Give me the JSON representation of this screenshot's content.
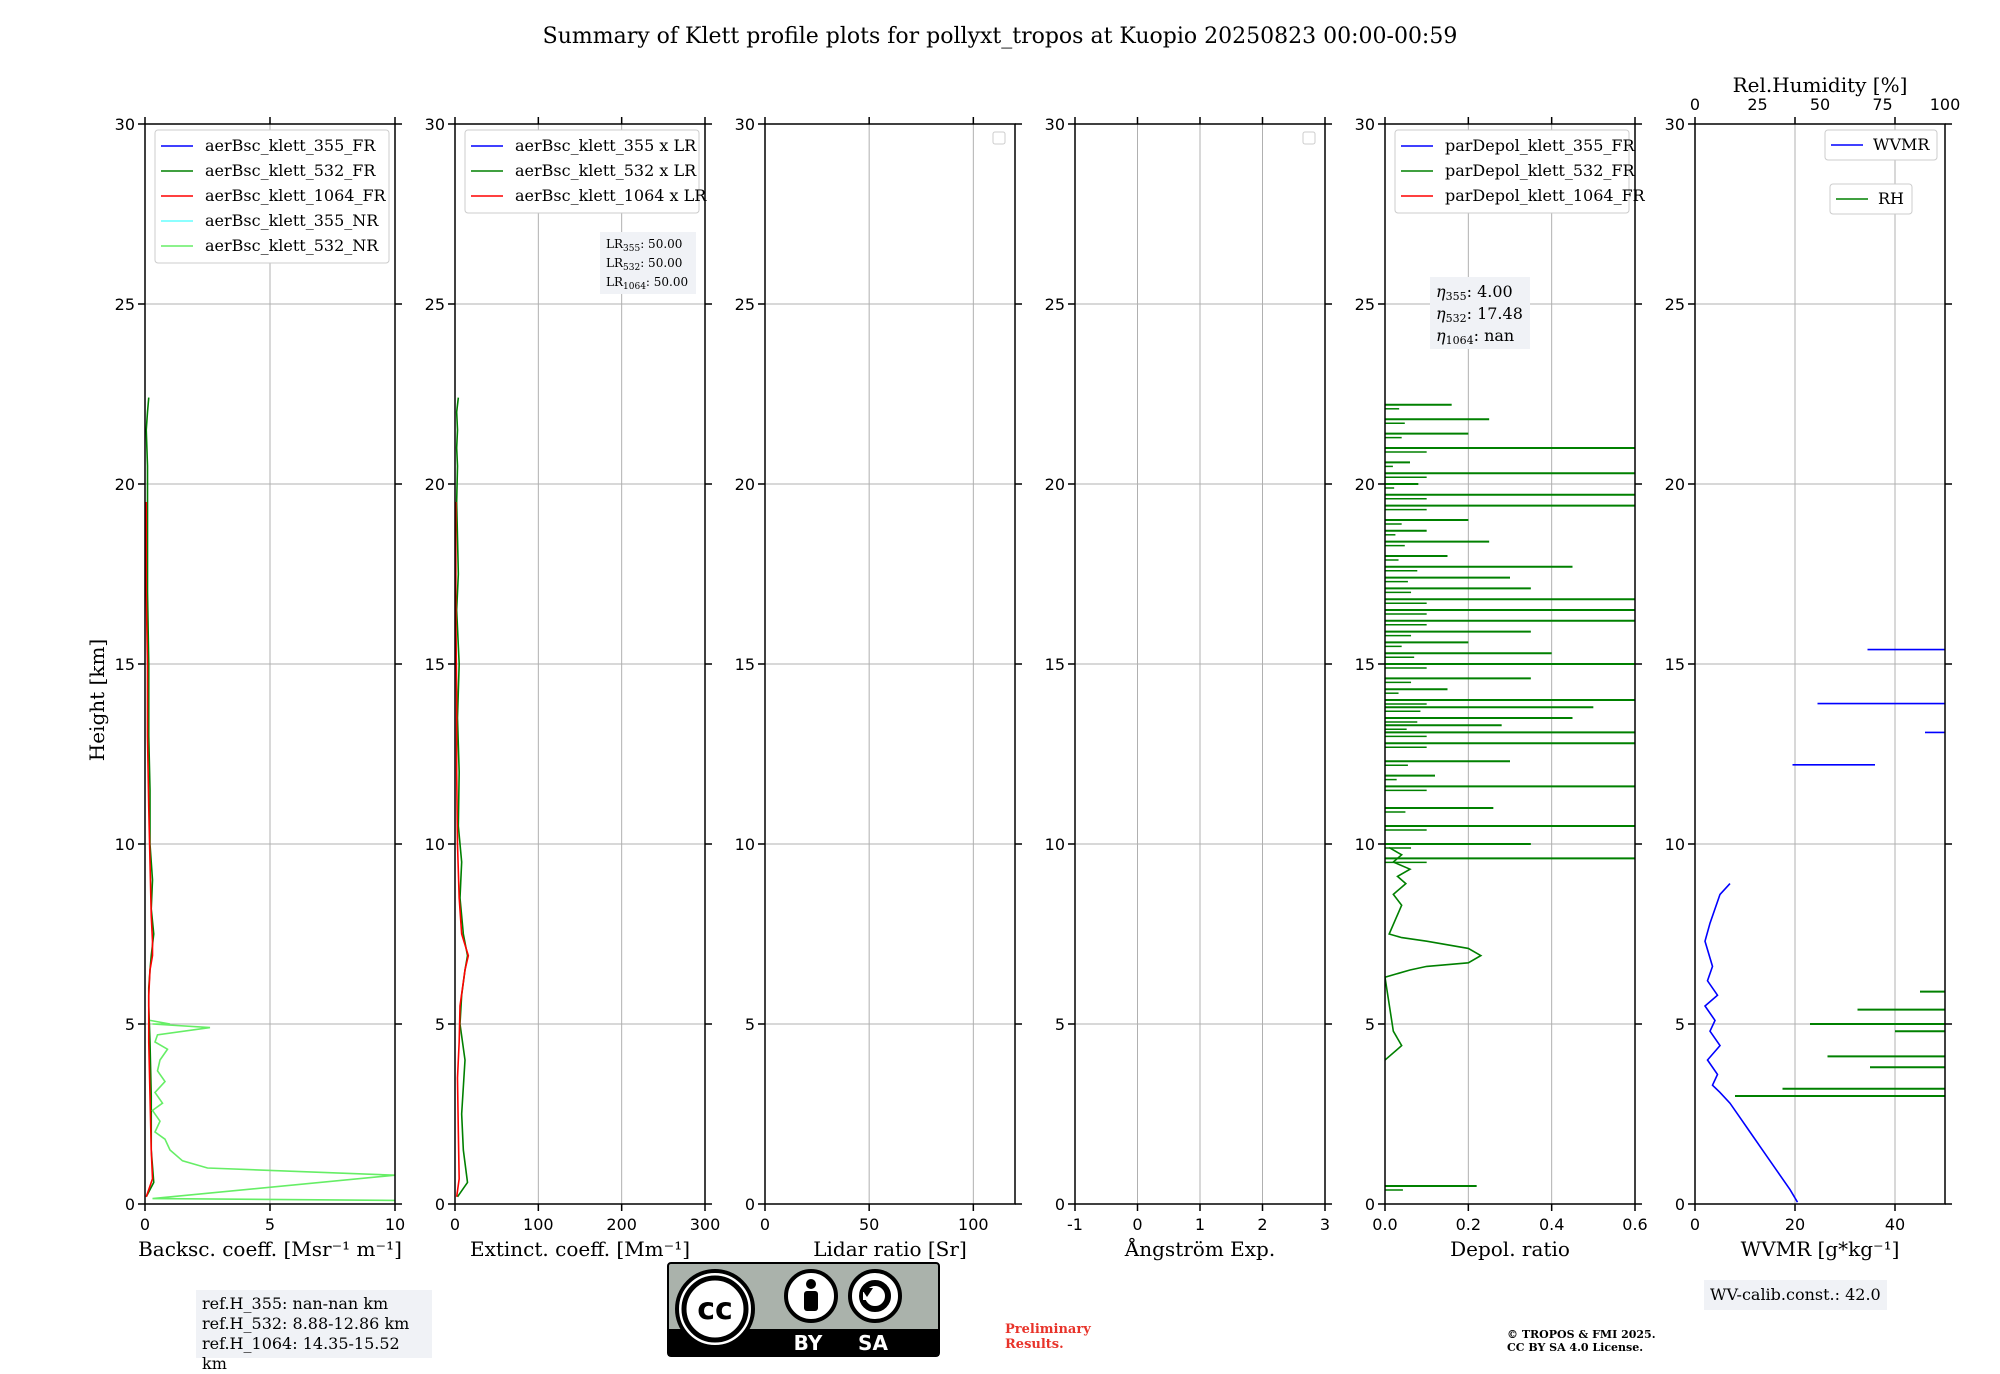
{
  "figure_title": "Summary of Klett profile plots for pollyxt_tropos at Kuopio 20250823 00:00-00:59",
  "height_label": "Height [km]",
  "colors": {
    "blue": "#0000ff",
    "green": "#008000",
    "red": "#ff0000",
    "cyan": "#66ffff",
    "lightgreen": "#66ee66",
    "grid": "#b0b0b0",
    "boxbg": "#f0f2f6",
    "prelim": "#e8332a"
  },
  "chart_data": [
    {
      "id": "backscatter",
      "type": "line",
      "xlabel": "Backsc. coeff. [Msr⁻¹ m⁻¹]",
      "ylabel": "Height [km]",
      "xlim": [
        0,
        10
      ],
      "ylim": [
        0,
        30
      ],
      "xticks": [
        0,
        5,
        10
      ],
      "yticks": [
        0,
        5,
        10,
        15,
        20,
        25,
        30
      ],
      "grid": true,
      "legend_position": "top-right",
      "series": [
        {
          "name": "aerBsc_klett_355_FR",
          "color": "#0000ff",
          "x": [],
          "y": []
        },
        {
          "name": "aerBsc_klett_532_FR",
          "color": "#008000",
          "x": [
            0.05,
            0.35,
            0.25,
            0.25,
            0.2,
            0.15,
            0.15,
            0.2,
            0.25,
            0.3,
            0.35,
            0.25,
            0.3,
            0.2,
            0.2,
            0.15,
            0.15,
            0.1,
            0.1,
            0.1,
            0.05,
            0.1,
            0.15
          ],
          "y": [
            0.2,
            0.6,
            1.5,
            3.0,
            4.5,
            5.5,
            6.0,
            6.5,
            6.9,
            7.2,
            7.5,
            8.2,
            9.0,
            10.0,
            11.5,
            13.0,
            15.0,
            17.0,
            19.0,
            20.5,
            21.5,
            22.0,
            22.4
          ]
        },
        {
          "name": "aerBsc_klett_1064_FR",
          "color": "#ff0000",
          "x": [
            0.05,
            0.3,
            0.25,
            0.2,
            0.15,
            0.15,
            0.2,
            0.3,
            0.3,
            0.25,
            0.2,
            0.15,
            0.1,
            0.1,
            0.05,
            0.05
          ],
          "y": [
            0.2,
            0.7,
            1.5,
            3.0,
            4.5,
            5.8,
            6.5,
            6.9,
            7.3,
            8.0,
            9.5,
            11.0,
            13.0,
            15.0,
            17.0,
            19.5
          ]
        },
        {
          "name": "aerBsc_klett_355_NR",
          "color": "#66ffff",
          "x": [],
          "y": []
        },
        {
          "name": "aerBsc_klett_532_NR",
          "color": "#66ee66",
          "x": [
            10.0,
            0.3,
            10.0,
            2.5,
            1.5,
            1.0,
            0.8,
            0.4,
            0.6,
            0.3,
            0.7,
            0.4,
            0.8,
            0.5,
            0.6,
            0.9,
            0.4,
            0.5,
            2.6,
            0.3,
            1.0,
            0.2
          ],
          "y": [
            0.1,
            0.15,
            0.8,
            1.0,
            1.2,
            1.5,
            1.8,
            2.0,
            2.3,
            2.6,
            2.8,
            3.1,
            3.4,
            3.7,
            4.0,
            4.3,
            4.5,
            4.7,
            4.9,
            5.0,
            5.0,
            5.1
          ]
        }
      ]
    },
    {
      "id": "extinction",
      "type": "line",
      "xlabel": "Extinct. coeff. [Mm⁻¹]",
      "xlim": [
        0,
        300
      ],
      "ylim": [
        0,
        30
      ],
      "xticks": [
        0,
        100,
        200,
        300
      ],
      "yticks": [
        0,
        5,
        10,
        15,
        20,
        25,
        30
      ],
      "grid": true,
      "legend_position": "top-right",
      "series": [
        {
          "name": "aerBsc_klett_355 x LR",
          "color": "#0000ff",
          "x": [],
          "y": []
        },
        {
          "name": "aerBsc_klett_532 x LR",
          "color": "#008000",
          "x": [
            3,
            15,
            10,
            8,
            12,
            6,
            8,
            12,
            15,
            10,
            6,
            8,
            4,
            5,
            3,
            5,
            2,
            4,
            3,
            2,
            3,
            2,
            3,
            2,
            4
          ],
          "y": [
            0.2,
            0.6,
            1.5,
            2.5,
            4.0,
            5.0,
            5.8,
            6.5,
            6.9,
            7.5,
            8.5,
            9.5,
            10.5,
            12.0,
            13.5,
            15.0,
            16.5,
            17.5,
            18.5,
            19.5,
            20.5,
            21.0,
            21.5,
            22.0,
            22.4
          ]
        },
        {
          "name": "aerBsc_klett_1064 x LR",
          "color": "#ff0000",
          "x": [
            2,
            5,
            4,
            3,
            5,
            6,
            12,
            16,
            8,
            5,
            3,
            2,
            2,
            1,
            1
          ],
          "y": [
            0.2,
            0.7,
            2.0,
            3.5,
            4.5,
            5.5,
            6.5,
            6.9,
            7.5,
            8.5,
            10.0,
            12.0,
            14.0,
            16.5,
            19.5
          ]
        }
      ],
      "lr": {
        "lr355": "50.00",
        "lr532": "50.00",
        "lr1064": "50.00"
      }
    },
    {
      "id": "lidar_ratio",
      "type": "line",
      "xlabel": "Lidar ratio [Sr]",
      "xlim": [
        0,
        120
      ],
      "ylim": [
        0,
        30
      ],
      "xticks": [
        0,
        50,
        100
      ],
      "yticks": [
        0,
        5,
        10,
        15,
        20,
        25,
        30
      ],
      "grid": true,
      "series": []
    },
    {
      "id": "angstrom",
      "type": "line",
      "xlabel": "Ångström Exp.",
      "xlim": [
        -1,
        3
      ],
      "ylim": [
        0,
        30
      ],
      "xticks": [
        -1,
        0,
        1,
        2,
        3
      ],
      "yticks": [
        0,
        5,
        10,
        15,
        20,
        25,
        30
      ],
      "grid": true,
      "series": []
    },
    {
      "id": "depol",
      "type": "line",
      "xlabel": "Depol. ratio",
      "xlim": [
        0,
        0.6
      ],
      "ylim": [
        0,
        30
      ],
      "xticks": [
        0.0,
        0.2,
        0.4,
        0.6
      ],
      "yticks": [
        0,
        5,
        10,
        15,
        20,
        25,
        30
      ],
      "grid": true,
      "legend_position": "top-right",
      "series": [
        {
          "name": "parDepol_klett_355_FR",
          "color": "#0000ff",
          "x": [],
          "y": []
        },
        {
          "name": "parDepol_klett_532_FR",
          "color": "#008000",
          "x": [],
          "y": []
        },
        {
          "name": "parDepol_klett_1064_FR",
          "color": "#ff0000",
          "x": [],
          "y": []
        }
      ],
      "spikes_532": {
        "height": [
          0.5,
          9.6,
          10.0,
          10.5,
          11.0,
          11.6,
          11.9,
          12.3,
          12.8,
          13.1,
          13.3,
          13.5,
          13.8,
          14.0,
          14.3,
          14.6,
          15.0,
          15.3,
          15.6,
          15.9,
          16.2,
          16.5,
          16.8,
          17.1,
          17.4,
          17.7,
          18.0,
          18.4,
          18.7,
          19.0,
          19.4,
          19.7,
          20.0,
          20.3,
          20.6,
          21.0,
          21.4,
          21.8,
          22.2
        ],
        "value": [
          0.22,
          0.6,
          0.35,
          0.6,
          0.26,
          0.6,
          0.12,
          0.3,
          0.6,
          0.6,
          0.28,
          0.45,
          0.5,
          0.6,
          0.15,
          0.35,
          0.6,
          0.4,
          0.2,
          0.35,
          0.6,
          0.6,
          0.6,
          0.35,
          0.3,
          0.45,
          0.15,
          0.25,
          0.1,
          0.2,
          0.6,
          0.6,
          0.08,
          0.6,
          0.06,
          0.6,
          0.2,
          0.25,
          0.16
        ]
      },
      "curve_532": {
        "x": [
          0.0,
          0.04,
          0.02,
          0.0,
          0.06,
          0.1,
          0.2,
          0.23,
          0.2,
          0.1,
          0.04,
          0.01,
          0.04,
          0.02,
          0.05,
          0.03,
          0.06,
          0.02,
          0.04,
          0.01
        ],
        "y": [
          4.0,
          4.4,
          4.8,
          6.3,
          6.5,
          6.6,
          6.7,
          6.9,
          7.1,
          7.3,
          7.4,
          7.5,
          8.3,
          8.6,
          8.9,
          9.1,
          9.3,
          9.5,
          9.7,
          9.9
        ]
      },
      "eta": {
        "eta355": "4.00",
        "eta532": "17.48",
        "eta1064": "nan"
      }
    },
    {
      "id": "wvmr",
      "type": "line",
      "xlabel": "WVMR [g*kg⁻¹]",
      "x2label": "Rel.Humidity [%]",
      "xlim": [
        0,
        50
      ],
      "x2lim": [
        0,
        100
      ],
      "ylim": [
        0,
        30
      ],
      "xticks": [
        0,
        20,
        40
      ],
      "x2ticks": [
        0,
        25,
        50,
        75,
        100
      ],
      "yticks": [
        0,
        5,
        10,
        15,
        20,
        25,
        30
      ],
      "grid": true,
      "legend_position": "top-right",
      "series": [
        {
          "name": "WVMR",
          "color": "#0000ff",
          "x": [
            20.5,
            19.0,
            17.0,
            15.0,
            13.0,
            11.0,
            9.0,
            7.0,
            5.0,
            3.5,
            4.5,
            2.5,
            5.0,
            3.0,
            4.0,
            2.0,
            4.5,
            2.5,
            3.5,
            2.0,
            3.0,
            5.0,
            7.0
          ],
          "y": [
            0.05,
            0.4,
            0.8,
            1.2,
            1.6,
            2.0,
            2.4,
            2.8,
            3.1,
            3.3,
            3.6,
            4.0,
            4.4,
            4.8,
            5.1,
            5.5,
            5.8,
            6.2,
            6.6,
            7.3,
            7.8,
            8.6,
            8.9
          ]
        },
        {
          "name": "RH",
          "color": "#008000",
          "x": [],
          "y": []
        }
      ],
      "wvmr_segments": [
        {
          "y": 15.4,
          "x0": 34.5,
          "x1": 50.0
        },
        {
          "y": 13.9,
          "x0": 24.5,
          "x1": 50.0
        },
        {
          "y": 13.1,
          "x0": 46.0,
          "x1": 50.0
        },
        {
          "y": 12.2,
          "x0": 19.5,
          "x1": 36.0
        }
      ],
      "rh_spikes": {
        "height": [
          2.9,
          3.0,
          3.1,
          3.2,
          3.4,
          3.8,
          4.1,
          4.3,
          4.6,
          4.8,
          5.0,
          5.1,
          5.2,
          5.4,
          5.5,
          5.6,
          5.8,
          5.9
        ],
        "value": [
          100,
          16,
          100,
          35,
          100,
          70,
          53,
          100,
          100,
          80,
          46,
          100,
          100,
          65,
          100,
          100,
          100,
          90
        ]
      },
      "calib_text": "WV-calib.const.: 42.0"
    }
  ],
  "refh": {
    "l355": "ref.H_355: nan-nan km",
    "l532": "ref.H_532: 8.88-12.86 km",
    "l1064": "ref.H_1064: 14.35-15.52 km"
  },
  "license_badge": {
    "by": "BY",
    "sa": "SA",
    "cc": "cc"
  },
  "preliminary": {
    "line1": "Preliminary",
    "line2": "Results."
  },
  "copyright": {
    "line1": "© TROPOS & FMI 2025.",
    "line2": "CC BY SA 4.0 License."
  }
}
